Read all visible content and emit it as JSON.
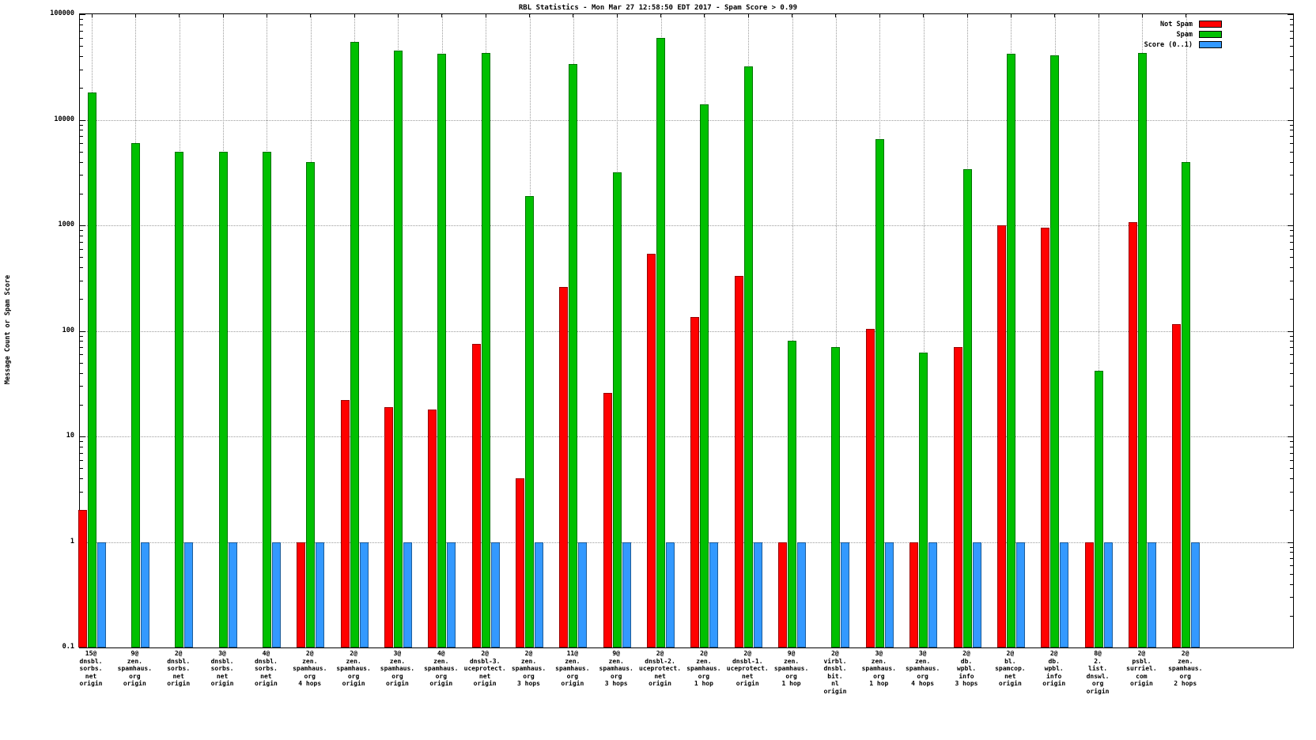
{
  "chart_data": {
    "type": "bar",
    "title": "RBL Statistics - Mon Mar 27 12:58:50 EDT 2017 - Spam Score > 0.99",
    "ylabel": "Message Count or Spam Score",
    "xlabel": "",
    "yscale": "log",
    "ylim": [
      0.1,
      100000
    ],
    "grid": true,
    "legend_position": "top-right",
    "yticks": [
      {
        "value": 100000,
        "label": "100000"
      },
      {
        "value": 10000,
        "label": "10000"
      },
      {
        "value": 1000,
        "label": "1000"
      },
      {
        "value": 100,
        "label": "100"
      },
      {
        "value": 10,
        "label": "10"
      },
      {
        "value": 1,
        "label": "1"
      },
      {
        "value": 0.1,
        "label": "0.1"
      }
    ],
    "categories": [
      [
        "15@",
        "dnsbl.",
        "sorbs.",
        "net",
        "origin"
      ],
      [
        "9@",
        "zen.",
        "spamhaus.",
        "org",
        "origin"
      ],
      [
        "2@",
        "dnsbl.",
        "sorbs.",
        "net",
        "origin"
      ],
      [
        "3@",
        "dnsbl.",
        "sorbs.",
        "net",
        "origin"
      ],
      [
        "4@",
        "dnsbl.",
        "sorbs.",
        "net",
        "origin"
      ],
      [
        "2@",
        "zen.",
        "spamhaus.",
        "org",
        "4 hops"
      ],
      [
        "2@",
        "zen.",
        "spamhaus.",
        "org",
        "origin"
      ],
      [
        "3@",
        "zen.",
        "spamhaus.",
        "org",
        "origin"
      ],
      [
        "4@",
        "zen.",
        "spamhaus.",
        "org",
        "origin"
      ],
      [
        "2@",
        "dnsbl-3.",
        "uceprotect.",
        "net",
        "origin"
      ],
      [
        "2@",
        "zen.",
        "spamhaus.",
        "org",
        "3 hops"
      ],
      [
        "11@",
        "zen.",
        "spamhaus.",
        "org",
        "origin"
      ],
      [
        "9@",
        "zen.",
        "spamhaus.",
        "org",
        "3 hops"
      ],
      [
        "2@",
        "dnsbl-2.",
        "uceprotect.",
        "net",
        "origin"
      ],
      [
        "2@",
        "zen.",
        "spamhaus.",
        "org",
        "1 hop"
      ],
      [
        "2@",
        "dnsbl-1.",
        "uceprotect.",
        "net",
        "origin"
      ],
      [
        "9@",
        "zen.",
        "spamhaus.",
        "org",
        "1 hop"
      ],
      [
        "2@",
        "virbl.",
        "dnsbl.",
        "bit.",
        "nl",
        "origin"
      ],
      [
        "3@",
        "zen.",
        "spamhaus.",
        "org",
        "1 hop"
      ],
      [
        "3@",
        "zen.",
        "spamhaus.",
        "org",
        "4 hops"
      ],
      [
        "2@",
        "db.",
        "wpbl.",
        "info",
        "3 hops"
      ],
      [
        "2@",
        "bl.",
        "spamcop.",
        "net",
        "origin"
      ],
      [
        "2@",
        "db.",
        "wpbl.",
        "info",
        "origin"
      ],
      [
        "8@",
        "2.",
        "list.",
        "dnswl.",
        "org",
        "origin"
      ],
      [
        "2@",
        "psbl.",
        "surriel.",
        "com",
        "origin"
      ],
      [
        "2@",
        "zen.",
        "spamhaus.",
        "org",
        "2 hops"
      ]
    ],
    "series": [
      {
        "name": "Not Spam",
        "color": "#ff0000",
        "values": [
          2,
          null,
          null,
          null,
          null,
          1,
          22,
          19,
          18,
          75,
          4,
          260,
          26,
          540,
          135,
          330,
          1,
          null,
          105,
          1,
          70,
          1000,
          950,
          1,
          1080,
          115
        ]
      },
      {
        "name": "Spam",
        "color": "#00c000",
        "values": [
          18000,
          6000,
          5000,
          5000,
          5000,
          4000,
          55000,
          45000,
          42000,
          43000,
          1900,
          34000,
          3200,
          60000,
          14000,
          32000,
          80,
          70,
          6500,
          62,
          3400,
          42000,
          41000,
          42,
          43000,
          4000
        ]
      },
      {
        "name": "Score (0..1)",
        "color": "#3399ff",
        "values": [
          1,
          1,
          1,
          1,
          1,
          1,
          1,
          1,
          1,
          1,
          1,
          1,
          1,
          1,
          1,
          1,
          1,
          1,
          1,
          1,
          1,
          1,
          1,
          1,
          1,
          1
        ]
      }
    ]
  }
}
